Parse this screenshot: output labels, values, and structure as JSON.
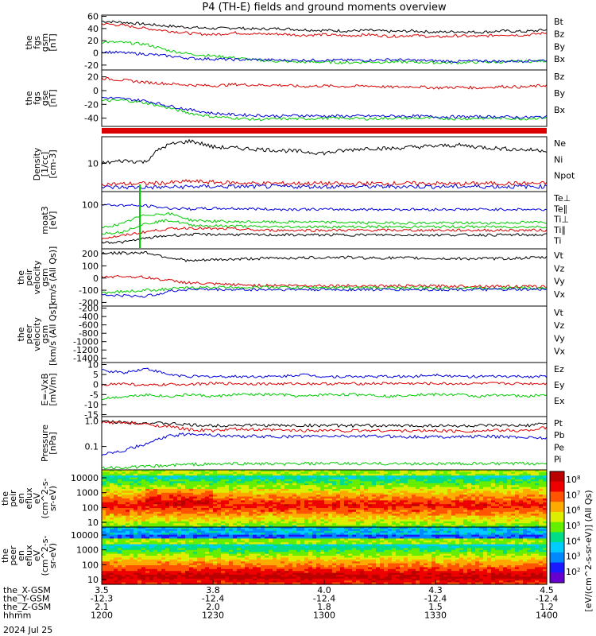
{
  "title": "P4 (TH-E) fields and ground moments overview",
  "date": "2024 Jul 25",
  "colors": {
    "black": "#000000",
    "red": "#dd0000",
    "green": "#00cc00",
    "blue": "#0000dd"
  },
  "chart_data": [
    {
      "type": "line",
      "id": "fgs_b",
      "ylabel": [
        "the",
        "fgs",
        "gsm",
        "[nT]"
      ],
      "yticks": [
        "60",
        "40",
        "20",
        "0",
        "-20"
      ],
      "ylim": [
        -28,
        62
      ],
      "series": [
        {
          "name": "Bt",
          "color": "black",
          "values": [
            52,
            50,
            47,
            44,
            42,
            40,
            41,
            39,
            40,
            38,
            37,
            36,
            37,
            35,
            36,
            34,
            35,
            34,
            36,
            35,
            38
          ]
        },
        {
          "name": "Bz",
          "color": "red",
          "values": [
            48,
            45,
            40,
            36,
            32,
            30,
            33,
            31,
            31,
            29,
            30,
            28,
            30,
            27,
            29,
            26,
            28,
            27,
            30,
            29,
            33
          ]
        },
        {
          "name": "By",
          "color": "green",
          "values": [
            18,
            17,
            14,
            4,
            -2,
            -5,
            -8,
            -12,
            -14,
            -15,
            -15,
            -16,
            -15,
            -15,
            -15,
            -16,
            -16,
            -15,
            -15,
            -14,
            -13
          ]
        },
        {
          "name": "Bx",
          "color": "blue",
          "values": [
            2,
            0,
            -2,
            -5,
            -9,
            -10,
            -11,
            -11,
            -12,
            -12,
            -12,
            -12,
            -12,
            -11,
            -12,
            -13,
            -14,
            -13,
            -14,
            -13,
            -12
          ]
        }
      ]
    },
    {
      "type": "line",
      "id": "fgs_b2",
      "ylabel": [
        "the",
        "fgs",
        "gse",
        "[nT]"
      ],
      "yticks": [
        "20",
        "0",
        "-20",
        "-40"
      ],
      "ylim": [
        -52,
        30
      ],
      "series": [
        {
          "name": "Bz",
          "color": "red",
          "values": [
            18,
            15,
            12,
            10,
            8,
            7,
            9,
            8,
            8,
            6,
            7,
            6,
            7,
            5,
            6,
            4,
            5,
            4,
            6,
            5,
            8
          ]
        },
        {
          "name": "By",
          "color": "green",
          "values": [
            -15,
            -14,
            -18,
            -25,
            -33,
            -38,
            -40,
            -42,
            -41,
            -41,
            -40,
            -40,
            -41,
            -40,
            -40,
            -40,
            -41,
            -40,
            -40,
            -41,
            -39
          ]
        },
        {
          "name": "Bx",
          "color": "blue",
          "values": [
            -10,
            -12,
            -15,
            -22,
            -28,
            -33,
            -35,
            -36,
            -37,
            -36,
            -37,
            -37,
            -37,
            -37,
            -37,
            -38,
            -38,
            -38,
            -38,
            -39,
            -38
          ]
        }
      ]
    },
    {
      "type": "line",
      "id": "density",
      "log": true,
      "ylabel": [
        "Density",
        "[1/cc]",
        "[cm-3]"
      ],
      "yticks": [
        "10"
      ],
      "ylim": [
        1.5,
        60
      ],
      "series": [
        {
          "name": "Ne",
          "color": "red",
          "values": [
            2.5,
            2.5,
            2.6,
            2.7,
            3.0,
            2.8,
            2.7,
            2.6,
            2.6,
            2.6,
            2.6,
            2.5,
            2.6,
            2.6,
            2.6,
            2.6,
            2.5,
            2.6,
            2.6,
            2.6,
            2.6
          ]
        },
        {
          "name": "Ni",
          "color": "black",
          "values": [
            10,
            12,
            11,
            35,
            45,
            30,
            28,
            26,
            24,
            22,
            20,
            24,
            28,
            27,
            30,
            32,
            34,
            30,
            27,
            25,
            24
          ]
        },
        {
          "name": "Npot",
          "color": "blue",
          "values": [
            2.0,
            2.0,
            2.0,
            2.0,
            2.1,
            2.1,
            2.1,
            2.1,
            2.1,
            2.1,
            2.1,
            2.1,
            2.1,
            2.1,
            2.1,
            2.1,
            2.1,
            2.1,
            2.1,
            2.1,
            2.1
          ]
        }
      ]
    },
    {
      "type": "line",
      "id": "temp",
      "log": true,
      "ylabel": [
        "moat3",
        "[eV]"
      ],
      "yticks": [
        "100"
      ],
      "ylim": [
        1,
        400
      ],
      "series": [
        {
          "name": "Te⊥",
          "color": "red",
          "values": [
            3,
            4,
            6,
            8,
            9,
            8,
            8,
            7,
            7,
            7,
            7,
            7,
            7,
            7,
            7,
            7,
            7,
            7,
            7,
            7,
            7
          ]
        },
        {
          "name": "Te∥",
          "color": "black",
          "values": [
            2,
            2,
            3,
            4,
            4.5,
            4.5,
            4.5,
            4.3,
            4.3,
            4.3,
            4.3,
            4.3,
            4.3,
            4.3,
            4.3,
            4.3,
            4.3,
            4.3,
            4.3,
            4.3,
            4.3
          ]
        },
        {
          "name": "Ti⊥",
          "color": "green",
          "values": [
            9,
            14,
            35,
            40,
            20,
            18,
            17,
            17,
            16,
            17,
            16,
            16,
            15,
            15,
            15,
            15,
            15,
            15,
            15,
            16,
            16
          ]
        },
        {
          "name": "Ti∥",
          "color": "green",
          "values": [
            5,
            6,
            14,
            20,
            12,
            11,
            11,
            10,
            10,
            10,
            10,
            10,
            10,
            10,
            10,
            10,
            10,
            10,
            10,
            10,
            10
          ]
        },
        {
          "name": "Ti",
          "color": "blue",
          "values": [
            100,
            95,
            90,
            70,
            65,
            68,
            68,
            65,
            62,
            63,
            62,
            62,
            62,
            62,
            62,
            62,
            62,
            62,
            62,
            62,
            60
          ]
        }
      ]
    },
    {
      "type": "line",
      "id": "v_peir",
      "ylabel": [
        "the",
        "peir",
        "velocity",
        "gsm",
        "[km/s (All Qs)]"
      ],
      "yticks": [
        "200",
        "100",
        "0",
        "-100",
        "-200"
      ],
      "ylim": [
        -230,
        240
      ],
      "series": [
        {
          "name": "Vt",
          "color": "black",
          "values": [
            205,
            205,
            210,
            170,
            140,
            150,
            155,
            160,
            165,
            165,
            170,
            170,
            165,
            165,
            165,
            160,
            160,
            160,
            160,
            165,
            170
          ]
        },
        {
          "name": "Vz",
          "color": "red",
          "values": [
            10,
            15,
            5,
            -20,
            -40,
            -50,
            -55,
            -60,
            -60,
            -62,
            -62,
            -63,
            -64,
            -65,
            -65,
            -66,
            -66,
            -66,
            -68,
            -70,
            -70
          ]
        },
        {
          "name": "Vy",
          "color": "green",
          "values": [
            -120,
            -110,
            -100,
            -90,
            -80,
            -75,
            -75,
            -75,
            -75,
            -78,
            -78,
            -80,
            -80,
            -80,
            -80,
            -82,
            -82,
            -82,
            -82,
            -80,
            -80
          ]
        },
        {
          "name": "Vx",
          "color": "blue",
          "values": [
            -140,
            -145,
            -150,
            -110,
            -90,
            -95,
            -95,
            -95,
            -95,
            -95,
            -95,
            -95,
            -95,
            -95,
            -95,
            -95,
            -95,
            -95,
            -95,
            -95,
            -95
          ]
        }
      ]
    },
    {
      "type": "line",
      "id": "v_peer",
      "ylabel": [
        "the",
        "peer",
        "velocity",
        "gsm",
        "[km/s (All Qs)]"
      ],
      "yticks": [
        "-200",
        "-400",
        "-600",
        "-800",
        "-1000",
        "-1200",
        "-1400"
      ],
      "ylim": [
        -1500,
        -150
      ],
      "series": [
        {
          "name": "Vt",
          "color": "black",
          "values": []
        },
        {
          "name": "Vz",
          "color": "red",
          "values": []
        },
        {
          "name": "Vy",
          "color": "green",
          "values": []
        },
        {
          "name": "Vx",
          "color": "blue",
          "values": []
        }
      ]
    },
    {
      "type": "line",
      "id": "efield",
      "ylabel": [
        "E=-VxB",
        "[mV/m]"
      ],
      "yticks": [
        "10",
        "5",
        "0",
        "-5",
        "-10",
        "-15"
      ],
      "ylim": [
        -16,
        11
      ],
      "series": [
        {
          "name": "Ez",
          "color": "red",
          "values": [
            0,
            0.5,
            -0.5,
            0,
            0.2,
            0.5,
            0.5,
            0.4,
            0.3,
            0.5,
            0.4,
            0.4,
            0.5,
            0.6,
            0.5,
            0.5,
            0.4,
            0.5,
            0.5,
            0.5,
            0.5
          ]
        },
        {
          "name": "Ey",
          "color": "green",
          "values": [
            -7,
            -6,
            -5,
            -6,
            -5,
            -6,
            -5,
            -5,
            -5,
            -6,
            -5,
            -5,
            -5,
            -6,
            -5,
            -5,
            -5,
            -6,
            -5,
            -6,
            -5
          ]
        },
        {
          "name": "Ex",
          "color": "blue",
          "values": [
            7,
            6,
            8,
            5,
            4,
            4,
            4,
            4,
            4,
            5,
            4,
            4,
            4,
            4,
            4,
            5,
            4,
            4,
            4,
            4,
            4
          ]
        }
      ]
    },
    {
      "type": "line",
      "id": "pressure",
      "log": true,
      "ylabel": [
        "Pressure",
        "[nPa]"
      ],
      "yticks": [
        "1.0",
        "0.1"
      ],
      "ylim": [
        0.012,
        1.5
      ],
      "series": [
        {
          "name": "Pt",
          "color": "black",
          "values": [
            0.95,
            0.9,
            0.85,
            0.8,
            0.7,
            0.65,
            0.7,
            0.68,
            0.67,
            0.66,
            0.68,
            0.65,
            0.66,
            0.65,
            0.65,
            0.66,
            0.64,
            0.65,
            0.66,
            0.65,
            0.8
          ]
        },
        {
          "name": "Pb",
          "color": "red",
          "values": [
            0.9,
            0.85,
            0.75,
            0.6,
            0.45,
            0.42,
            0.48,
            0.45,
            0.44,
            0.42,
            0.44,
            0.41,
            0.43,
            0.42,
            0.41,
            0.42,
            0.4,
            0.41,
            0.43,
            0.42,
            0.55
          ]
        },
        {
          "name": "Pe",
          "color": "green",
          "values": [
            0.014,
            0.015,
            0.016,
            0.018,
            0.02,
            0.02,
            0.021,
            0.021,
            0.02,
            0.021,
            0.021,
            0.021,
            0.021,
            0.021,
            0.021,
            0.021,
            0.021,
            0.021,
            0.021,
            0.021,
            0.021
          ]
        },
        {
          "name": "Pi",
          "color": "blue",
          "values": [
            0.05,
            0.07,
            0.12,
            0.25,
            0.32,
            0.28,
            0.25,
            0.25,
            0.24,
            0.25,
            0.25,
            0.26,
            0.25,
            0.25,
            0.24,
            0.24,
            0.24,
            0.25,
            0.24,
            0.23,
            0.22
          ]
        }
      ]
    },
    {
      "type": "heatmap",
      "id": "peir_en",
      "ylabel": [
        "the",
        "peir",
        "en",
        "eflux",
        "eV",
        "(cm^2-s-",
        "sr-eV)"
      ],
      "yticks": [
        "10000",
        "1000",
        "100",
        "10"
      ],
      "ylim": [
        5,
        20000
      ]
    },
    {
      "type": "heatmap",
      "id": "peer_en",
      "ylabel": [
        "the",
        "peer",
        "en",
        "eflux",
        "eV",
        "(cm^2-s-",
        "sr-eV)"
      ],
      "yticks": [
        "10000",
        "1000",
        "100",
        "10"
      ],
      "ylim": [
        5,
        20000
      ]
    }
  ],
  "colorbar": {
    "label": "[eV/(cm^2-s-sr-eV)] (All Qs)",
    "ticks": [
      "10^8",
      "10^7",
      "10^6",
      "10^5",
      "10^4",
      "10^3",
      "10^2"
    ]
  },
  "xaxis": {
    "ticks": [
      "3.5",
      "3.8",
      "4.0",
      "4.3",
      "4.5"
    ],
    "rows": [
      {
        "label": "the_X-GSM",
        "values": [
          "3.5",
          "3.8",
          "4.0",
          "4.3",
          "4.5"
        ]
      },
      {
        "label": "the_Y-GSM",
        "values": [
          "-12.3",
          "-12.4",
          "-12.4",
          "-12.4",
          "-12.4"
        ]
      },
      {
        "label": "the_Z-GSM",
        "values": [
          "2.1",
          "2.0",
          "1.8",
          "1.5",
          "1.2"
        ]
      },
      {
        "label": "hhmm",
        "values": [
          "1200",
          "1230",
          "1300",
          "1330",
          "1400"
        ]
      }
    ]
  }
}
